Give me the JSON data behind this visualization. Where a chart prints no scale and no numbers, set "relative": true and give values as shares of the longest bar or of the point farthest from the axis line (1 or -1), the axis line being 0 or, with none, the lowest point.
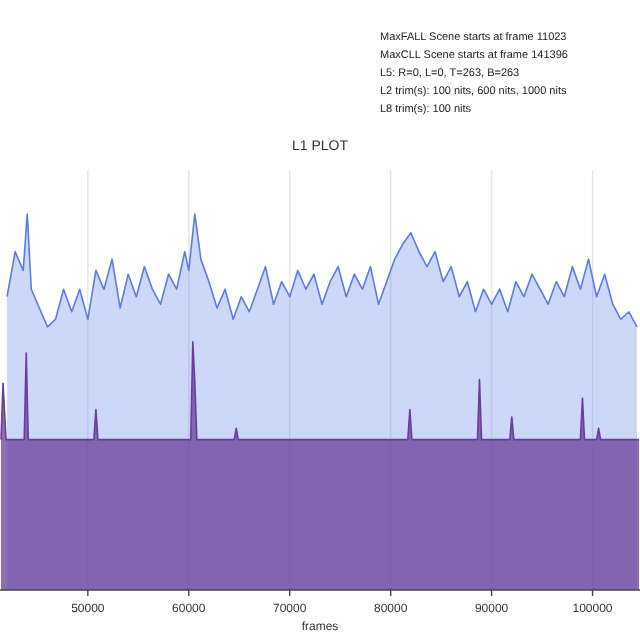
{
  "chart_data": {
    "type": "area",
    "title": "L1 PLOT",
    "xlabel": "frames",
    "relative": true,
    "xlim": [
      41300,
      104700
    ],
    "xticks": [
      50000,
      60000,
      70000,
      80000,
      90000,
      100000
    ],
    "grid": "x",
    "annotations": [
      "MaxFALL Scene starts at frame 11023",
      "MaxCLL Scene starts at frame 141396",
      "L5: R=0, L=0, T=263, B=263",
      "L2 trim(s): 100 nits, 600 nits, 1000 nits",
      "L8 trim(s): 100 nits"
    ],
    "series": [
      {
        "color": "#5b7be6",
        "x": [
          42000,
          42800,
          43600,
          44000,
          44400,
          45200,
          46000,
          46800,
          47600,
          48400,
          49200,
          50000,
          50800,
          51600,
          52400,
          53200,
          54000,
          54800,
          55600,
          56400,
          57200,
          58000,
          58800,
          59600,
          60000,
          60600,
          61200,
          62000,
          62800,
          63600,
          64400,
          65200,
          66000,
          66800,
          67600,
          68400,
          69200,
          70000,
          70800,
          71600,
          72400,
          73200,
          74000,
          74800,
          75600,
          76400,
          77200,
          78000,
          78800,
          79600,
          80400,
          81200,
          82000,
          82800,
          83600,
          84400,
          85200,
          86000,
          86800,
          87600,
          88400,
          89200,
          90000,
          90800,
          91600,
          92400,
          93200,
          94000,
          94800,
          95600,
          96400,
          97200,
          98000,
          98800,
          99600,
          100400,
          101200,
          102000,
          102800,
          103600,
          104400
        ],
        "values": [
          0.78,
          0.9,
          0.85,
          1.0,
          0.8,
          0.75,
          0.7,
          0.72,
          0.8,
          0.74,
          0.8,
          0.72,
          0.85,
          0.8,
          0.88,
          0.75,
          0.84,
          0.78,
          0.86,
          0.8,
          0.76,
          0.84,
          0.8,
          0.9,
          0.85,
          1.0,
          0.88,
          0.82,
          0.75,
          0.8,
          0.72,
          0.78,
          0.74,
          0.8,
          0.86,
          0.76,
          0.82,
          0.78,
          0.85,
          0.8,
          0.84,
          0.76,
          0.82,
          0.86,
          0.78,
          0.84,
          0.8,
          0.86,
          0.76,
          0.82,
          0.88,
          0.92,
          0.95,
          0.9,
          0.86,
          0.9,
          0.82,
          0.86,
          0.78,
          0.82,
          0.74,
          0.8,
          0.76,
          0.8,
          0.74,
          0.82,
          0.78,
          0.84,
          0.8,
          0.76,
          0.82,
          0.78,
          0.86,
          0.8,
          0.88,
          0.78,
          0.84,
          0.76,
          0.72,
          0.74,
          0.7
        ]
      },
      {
        "color": "#6a3d9a",
        "x": [
          41400,
          41600,
          41900,
          43700,
          43900,
          44100,
          50600,
          50800,
          51000,
          60200,
          60400,
          60600,
          60800,
          64500,
          64700,
          64900,
          81700,
          81900,
          82100,
          88600,
          88800,
          89000,
          91800,
          92000,
          92200,
          98800,
          99000,
          99200,
          100400,
          100600,
          100800,
          104600
        ],
        "values": [
          0.4,
          0.55,
          0.4,
          0.4,
          0.63,
          0.4,
          0.4,
          0.48,
          0.4,
          0.4,
          0.66,
          0.55,
          0.4,
          0.4,
          0.43,
          0.4,
          0.4,
          0.48,
          0.4,
          0.4,
          0.56,
          0.4,
          0.4,
          0.46,
          0.4,
          0.4,
          0.51,
          0.4,
          0.4,
          0.43,
          0.4,
          0.4
        ]
      }
    ]
  }
}
